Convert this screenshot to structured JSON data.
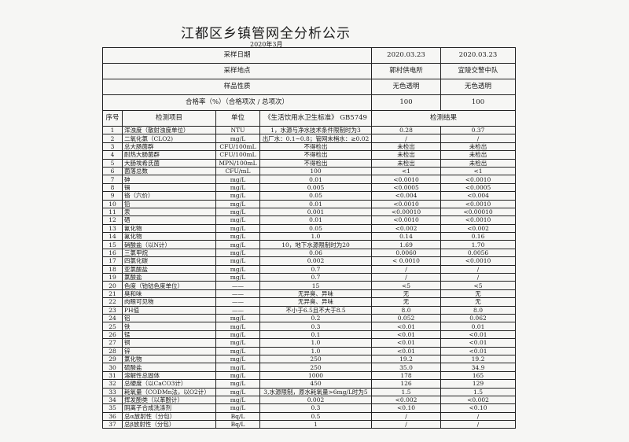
{
  "title": "江都区乡镇管网全分析公示",
  "subtitle": "2020年3月",
  "header_rows": [
    {
      "label": "采样日期",
      "v1": "2020.03.23",
      "v2": "2020.03.23"
    },
    {
      "label": "采样地点",
      "v1": "郭村供电所",
      "v2": "宜陵交警中队"
    },
    {
      "label": "样品性质",
      "v1": "无色透明",
      "v2": "无色透明"
    },
    {
      "label": "合格率（%）（合格项次 / 总项次）",
      "v1": "100",
      "v2": "100"
    }
  ],
  "columns": {
    "no": "序号",
    "item": "检测项目",
    "unit": "单位",
    "standard": "《生活饮用水卫生标准》 GB5749",
    "result": "检测结果"
  },
  "rows": [
    [
      "1",
      "浑浊度（散射浊度单位）",
      "NTU",
      "1，水源与净水技术条件限制时为3",
      "0.28",
      "0.37"
    ],
    [
      "2",
      "二氧化氯（CLO2)",
      "mg/L",
      "出厂水：0.1~0.8；管网末梢水：≥0.02",
      "/",
      "/"
    ],
    [
      "3",
      "总大肠菌群",
      "CFU/100mL",
      "不得检出",
      "未检出",
      "未检出"
    ],
    [
      "4",
      "耐热大肠菌群",
      "CFU/100mL",
      "不得检出",
      "未检出",
      "未检出"
    ],
    [
      "5",
      "大肠埃希氏菌",
      "MPN/100mL",
      "不得检出",
      "未检出",
      "未检出"
    ],
    [
      "6",
      "菌落总数",
      "CFU/mL",
      "100",
      "<1",
      "<1"
    ],
    [
      "7",
      "砷",
      "mg/L",
      "0.01",
      "<0.0010",
      "<0.0010"
    ],
    [
      "8",
      "镉",
      "mg/L",
      "0.005",
      "<0.0005",
      "<0.0005"
    ],
    [
      "9",
      "铬（六价）",
      "mg/L",
      "0.05",
      "<0.004",
      "<0.004"
    ],
    [
      "10",
      "铅",
      "mg/L",
      "0.01",
      "<0.0010",
      "<0.0010"
    ],
    [
      "11",
      "汞",
      "mg/L",
      "0.001",
      "<0.00010",
      "<0.00010"
    ],
    [
      "12",
      "硒",
      "mg/L",
      "0.01",
      "<0.0010",
      "<0.0010"
    ],
    [
      "13",
      "氰化物",
      "mg/L",
      "0.05",
      "<0.002",
      "<0.002"
    ],
    [
      "14",
      "氟化物",
      "mg/L",
      "1.0",
      "0.14",
      "0.16"
    ],
    [
      "15",
      "硝酸盐（以N计）",
      "mg/L",
      "10，地下水源限制时为20",
      "1.69",
      "1.70"
    ],
    [
      "16",
      "三氯甲烷",
      "mg/L",
      "0.06",
      "0.0060",
      "0.0056"
    ],
    [
      "17",
      "四氯化碳",
      "mg/L",
      "0.002",
      "< 0.0010",
      "<0.0010"
    ],
    [
      "18",
      "亚氯酸盐",
      "mg/L",
      "0.7",
      "/",
      "/"
    ],
    [
      "19",
      "氯酸盐",
      "mg/L",
      "0.7",
      "/",
      "/"
    ],
    [
      "20",
      "色度（铂钴色度单位）",
      "——",
      "15",
      "<5",
      "<5"
    ],
    [
      "21",
      "臭和味",
      "——",
      "无异臭、异味",
      "无",
      "无"
    ],
    [
      "22",
      "肉眼可见物",
      "——",
      "无异臭、异味",
      "无",
      "无"
    ],
    [
      "23",
      "PH值",
      "——",
      "不小于6.5且不大于8.5",
      "8.0",
      "8.0"
    ],
    [
      "24",
      "铝",
      "mg/L",
      "0.2",
      "0.052",
      "0.062"
    ],
    [
      "25",
      "铁",
      "mg/L",
      "0.3",
      "<0.01",
      "0.01"
    ],
    [
      "26",
      "锰",
      "mg/L",
      "0.1",
      "<0.01",
      "<0.01"
    ],
    [
      "27",
      "铜",
      "mg/L",
      "1.0",
      "<0.01",
      "<0.01"
    ],
    [
      "28",
      "锌",
      "mg/L",
      "1.0",
      "<0.01",
      "<0.01"
    ],
    [
      "29",
      "氯化物",
      "mg/L",
      "250",
      "19.2",
      "19.2"
    ],
    [
      "30",
      "硫酸盐",
      "mg/L",
      "250",
      "35.0",
      "34.9"
    ],
    [
      "31",
      "溶解性总固体",
      "mg/L",
      "1000",
      "178",
      "165"
    ],
    [
      "32",
      "总硬度（以CaCO3计）",
      "mg/L",
      "450",
      "126",
      "129"
    ],
    [
      "33",
      "耗氧量（CODMn法，以O2计）",
      "mg/L",
      "3,水源限制，原水耗氧量>6mg/L时为5",
      "1.5",
      "1.5"
    ],
    [
      "34",
      "挥发酚类（以苯酚计）",
      "mg/L",
      "0.002",
      "<0.002",
      "<0.002"
    ],
    [
      "35",
      "阴离子合成洗涤剂",
      "mg/L",
      "0.3",
      "<0.10",
      "<0.10"
    ],
    [
      "36",
      "总α放射性（分包）",
      "Bq/L",
      "0.5",
      "/",
      "/"
    ],
    [
      "37",
      "总β放射性（分包）",
      "Bq/L",
      "1",
      "/",
      "/"
    ]
  ]
}
